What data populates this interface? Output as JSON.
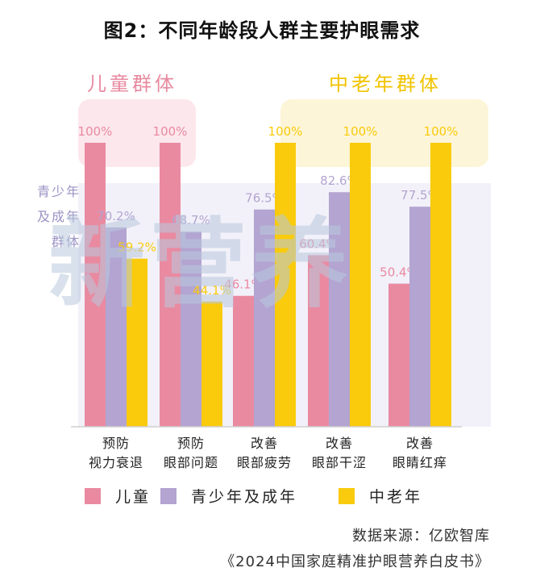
{
  "title": "图2：不同年龄段人群主要护眼需求",
  "group_labels": {
    "children": "儿童群体",
    "elderly": "中老年群体",
    "adult_lines": [
      "青少年",
      "及成年",
      "群体"
    ]
  },
  "chart_data": {
    "type": "bar",
    "categories": [
      [
        "预防",
        "视力衰退"
      ],
      [
        "预防",
        "眼部问题"
      ],
      [
        "改善",
        "眼部疲劳"
      ],
      [
        "改善",
        "眼部干涩"
      ],
      [
        "改善",
        "眼睛红痒"
      ]
    ],
    "series": [
      {
        "name": "儿童",
        "color": "#e98aa1",
        "values": [
          100,
          100,
          46.1,
          60.4,
          50.4
        ]
      },
      {
        "name": "青少年及成年",
        "color": "#b3a4d1",
        "values": [
          70.2,
          68.7,
          76.5,
          82.6,
          77.5
        ]
      },
      {
        "name": "中老年",
        "color": "#f9cb0c",
        "values": [
          59.2,
          44.1,
          100,
          100,
          100
        ]
      }
    ],
    "value_suffix": "%",
    "ylim": [
      0,
      100
    ],
    "legend": "bottom",
    "grid": false
  },
  "source": {
    "line1": "数据来源：亿欧智库",
    "line2": "《2024中国家庭精准护眼营养白皮书》"
  },
  "watermark": "新营养"
}
